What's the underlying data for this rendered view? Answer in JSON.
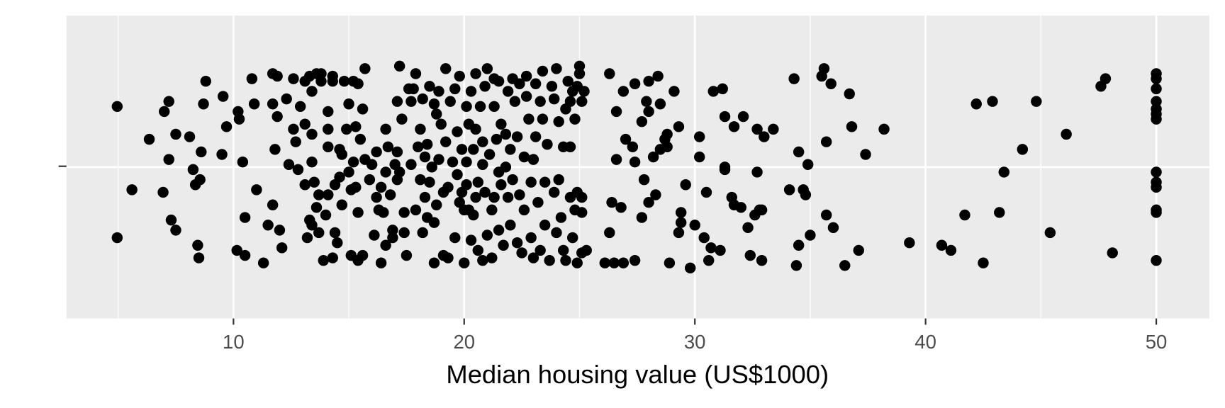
{
  "chart_data": {
    "type": "scatter",
    "x_label": "Median housing value (US$1000)",
    "xlim": [
      2.76,
      52.3
    ],
    "xticks": [
      10,
      20,
      30,
      40,
      50
    ],
    "x_minor_grid": [
      5,
      15,
      25,
      35,
      45
    ],
    "ylim": [
      0.4,
      1.6
    ],
    "y_center": 1,
    "grid": true,
    "color": "#000000",
    "x": [
      4.96,
      4.96,
      5.6,
      6.35,
      6.95,
      7.0,
      7.2,
      7.2,
      7.3,
      7.5,
      7.5,
      8.1,
      8.25,
      8.35,
      8.45,
      8.5,
      8.55,
      8.6,
      8.7,
      8.8,
      9.5,
      9.55,
      9.7,
      10.15,
      10.2,
      10.25,
      10.4,
      10.5,
      10.5,
      10.8,
      10.9,
      11.0,
      11.3,
      11.5,
      11.7,
      11.7,
      11.7,
      11.8,
      11.9,
      11.9,
      12.0,
      12.1,
      12.3,
      12.4,
      12.6,
      12.6,
      12.7,
      12.8,
      12.9,
      13.1,
      13.1,
      13.1,
      13.2,
      13.3,
      13.3,
      13.4,
      13.4,
      13.4,
      13.4,
      13.5,
      13.6,
      13.6,
      13.7,
      13.7,
      13.8,
      13.8,
      13.9,
      14.0,
      14.1,
      14.1,
      14.1,
      14.1,
      14.3,
      14.3,
      14.3,
      14.4,
      14.4,
      14.5,
      14.6,
      14.6,
      14.7,
      14.7,
      14.8,
      14.9,
      15.0,
      15.0,
      15.1,
      15.1,
      15.2,
      15.2,
      15.3,
      15.3,
      15.4,
      15.4,
      15.4,
      15.5,
      15.6,
      15.6,
      15.7,
      15.7,
      15.9,
      16.0,
      16.1,
      16.2,
      16.2,
      16.3,
      16.4,
      16.4,
      16.5,
      16.6,
      16.6,
      16.6,
      16.7,
      16.8,
      16.9,
      16.9,
      17.0,
      17.1,
      17.1,
      17.1,
      17.2,
      17.2,
      17.3,
      17.4,
      17.4,
      17.5,
      17.6,
      17.7,
      17.7,
      17.8,
      17.9,
      17.9,
      18.0,
      18.1,
      18.1,
      18.2,
      18.2,
      18.3,
      18.3,
      18.4,
      18.4,
      18.5,
      18.5,
      18.6,
      18.7,
      18.7,
      18.7,
      18.8,
      18.8,
      18.9,
      18.9,
      19.0,
      19.1,
      19.1,
      19.2,
      19.2,
      19.3,
      19.3,
      19.4,
      19.5,
      19.6,
      19.6,
      19.7,
      19.7,
      19.8,
      19.8,
      19.9,
      19.9,
      20.0,
      20.0,
      20.1,
      20.1,
      20.1,
      20.2,
      20.2,
      20.3,
      20.3,
      20.4,
      20.4,
      20.5,
      20.5,
      20.5,
      20.6,
      20.6,
      20.7,
      20.8,
      20.8,
      20.8,
      20.9,
      20.9,
      21.0,
      21.0,
      21.1,
      21.2,
      21.2,
      21.3,
      21.3,
      21.3,
      21.4,
      21.5,
      21.5,
      21.5,
      21.6,
      21.6,
      21.7,
      21.8,
      21.8,
      21.9,
      21.9,
      22.0,
      22.0,
      22.1,
      22.1,
      22.2,
      22.3,
      22.3,
      22.4,
      22.4,
      22.5,
      22.6,
      22.6,
      22.7,
      22.7,
      22.8,
      22.9,
      22.9,
      23.0,
      23.0,
      23.1,
      23.1,
      23.2,
      23.3,
      23.3,
      23.4,
      23.4,
      23.5,
      23.5,
      23.6,
      23.7,
      23.8,
      23.9,
      23.9,
      24.0,
      24.0,
      24.1,
      24.1,
      24.2,
      24.3,
      24.3,
      24.4,
      24.4,
      24.5,
      24.6,
      24.6,
      24.6,
      24.7,
      24.7,
      24.8,
      24.8,
      24.9,
      24.9,
      24.9,
      25.0,
      25.0,
      25.1,
      25.1,
      25.1,
      25.1,
      25.2,
      25.3,
      26.1,
      26.3,
      26.4,
      26.3,
      26.5,
      26.6,
      26.6,
      26.8,
      26.9,
      26.9,
      27.0,
      27.3,
      27.4,
      27.4,
      27.4,
      27.7,
      27.7,
      27.8,
      27.9,
      28.0,
      28.0,
      28.0,
      28.2,
      28.3,
      28.4,
      28.5,
      28.5,
      28.7,
      28.8,
      28.8,
      28.9,
      29.1,
      29.3,
      29.3,
      29.4,
      29.4,
      29.6,
      29.8,
      30.0,
      30.2,
      30.2,
      30.4,
      30.5,
      30.6,
      30.7,
      30.8,
      31.1,
      31.2,
      31.3,
      31.3,
      31.3,
      31.6,
      31.7,
      31.7,
      32.0,
      32.1,
      32.3,
      32.4,
      32.6,
      32.7,
      32.7,
      32.8,
      32.9,
      32.9,
      33.0,
      33.4,
      34.1,
      34.3,
      34.4,
      34.5,
      34.5,
      34.7,
      34.8,
      34.9,
      35.0,
      35.5,
      35.6,
      35.7,
      35.7,
      35.9,
      36.0,
      36.5,
      36.7,
      36.8,
      37.1,
      37.4,
      38.2,
      39.3,
      40.7,
      41.1,
      41.7,
      42.2,
      42.5,
      42.9,
      43.2,
      43.4,
      44.2,
      44.8,
      45.4,
      46.1,
      47.6,
      47.8,
      48.1,
      50,
      50,
      50,
      50,
      50,
      50,
      50,
      50,
      50,
      50,
      50,
      50,
      50
    ],
    "values": [
      1.24,
      0.72,
      0.91,
      1.11,
      0.9,
      1.22,
      1.26,
      1.03,
      0.79,
      1.13,
      0.75,
      1.12,
      0.99,
      0.93,
      0.69,
      0.64,
      0.95,
      1.06,
      1.25,
      1.34,
      1.05,
      1.28,
      1.16,
      0.67,
      1.22,
      1.19,
      1.02,
      0.8,
      0.65,
      1.35,
      1.25,
      0.91,
      0.62,
      0.77,
      1.37,
      0.85,
      1.25,
      1.07,
      1.2,
      1.36,
      0.75,
      0.68,
      1.27,
      1.01,
      1.35,
      1.15,
      1.1,
      0.99,
      1.24,
      0.93,
      1.17,
      1.34,
      0.72,
      1.36,
      0.79,
      1.13,
      0.77,
      1.3,
      1.02,
      0.94,
      1.37,
      0.84,
      0.89,
      0.74,
      1.34,
      1.37,
      0.63,
      0.81,
      1.15,
      1.22,
      0.89,
      1.08,
      1.36,
      0.64,
      1.34,
      0.93,
      0.74,
      0.7,
      0.96,
      1.07,
      0.85,
      1.05,
      1.34,
      1.15,
      1.25,
      0.98,
      0.91,
      0.65,
      1.34,
      1.02,
      1.16,
      0.92,
      0.63,
      1.33,
      0.82,
      1.11,
      1.23,
      0.65,
      1.39,
      1.03,
      0.95,
      1.01,
      0.73,
      0.88,
      1.06,
      0.83,
      0.62,
      0.92,
      0.82,
      0.69,
      1.15,
      0.98,
      1.08,
      0.89,
      0.72,
      0.75,
      1.01,
      0.95,
      1.26,
      1.06,
      1.4,
      0.98,
      1.19,
      0.74,
      0.82,
      0.65,
      1.31,
      1.26,
      1.01,
      1.31,
      0.83,
      1.37,
      1.08,
      0.95,
      1.15,
      0.74,
      1.27,
      0.88,
      1.04,
      1.09,
      0.8,
      1.32,
      0.94,
      1.0,
      0.62,
      1.25,
      0.78,
      1.21,
      0.85,
      1.03,
      1.3,
      1.17,
      0.65,
      0.9,
      1.1,
      1.39,
      0.92,
      0.64,
      1.26,
      1.02,
      0.72,
      1.31,
      0.97,
      1.14,
      0.86,
      1.36,
      0.9,
      1.07,
      0.83,
      0.62,
      1.24,
      0.93,
      1.02,
      1.17,
      0.83,
      0.71,
      1.3,
      0.81,
      1.07,
      0.88,
      1.37,
      1.15,
      0.94,
      0.67,
      1.24,
      1.01,
      0.63,
      1.1,
      0.9,
      1.32,
      1.39,
      0.73,
      1.05,
      0.83,
      0.64,
      1.24,
      0.88,
      1.35,
      1.11,
      0.98,
      1.34,
      0.75,
      1.17,
      0.93,
      0.69,
      1.0,
      1.13,
      0.88,
      1.3,
      1.07,
      0.77,
      1.35,
      0.95,
      1.26,
      0.7,
      1.12,
      0.89,
      1.33,
      0.66,
      1.04,
      0.83,
      1.28,
      1.36,
      1.19,
      0.94,
      0.72,
      1.03,
      0.64,
      1.33,
      1.12,
      0.86,
      1.26,
      0.67,
      1.19,
      1.38,
      0.94,
      0.77,
      1.09,
      0.63,
      1.32,
      0.9,
      1.27,
      1.39,
      0.74,
      1.18,
      0.95,
      0.8,
      0.67,
      1.08,
      1.23,
      0.63,
      1.34,
      0.88,
      1.08,
      1.26,
      1.3,
      0.72,
      0.83,
      1.19,
      0.9,
      1.32,
      0.62,
      1.4,
      1.37,
      0.82,
      1.26,
      0.66,
      0.88,
      1.3,
      0.67,
      0.62,
      1.37,
      0.86,
      0.74,
      0.62,
      1.03,
      1.22,
      0.84,
      0.62,
      1.3,
      1.11,
      1.08,
      1.33,
      0.63,
      1.02,
      1.18,
      0.8,
      0.95,
      1.26,
      1.34,
      0.86,
      1.22,
      1.04,
      0.89,
      1.36,
      1.25,
      1.07,
      1.11,
      1.13,
      1.08,
      0.62,
      1.3,
      0.74,
      1.16,
      0.82,
      0.78,
      0.93,
      0.6,
      0.77,
      1.12,
      1.04,
      0.72,
      0.9,
      0.63,
      0.68,
      1.3,
      0.67,
      1.31,
      1.0,
      0.99,
      1.2,
      0.88,
      0.85,
      1.16,
      0.84,
      1.2,
      0.76,
      0.65,
      0.81,
      0.98,
      1.15,
      0.83,
      0.83,
      0.63,
      1.12,
      1.15,
      0.91,
      1.35,
      0.61,
      0.69,
      1.06,
      0.91,
      0.89,
      1.01,
      0.73,
      1.36,
      1.39,
      0.81,
      1.1,
      1.33,
      0.76,
      0.61,
      1.29,
      1.16,
      0.67,
      1.05,
      1.15,
      0.7,
      0.69,
      0.67,
      0.81,
      1.25,
      0.62,
      1.26,
      0.82,
      0.98,
      1.07,
      1.26,
      0.74,
      1.13,
      1.32,
      1.35,
      0.66,
      1.37,
      1.35,
      1.31,
      1.26,
      1.23,
      1.21,
      1.19,
      0.98,
      0.94,
      0.92,
      0.83,
      0.82,
      0.63
    ]
  }
}
